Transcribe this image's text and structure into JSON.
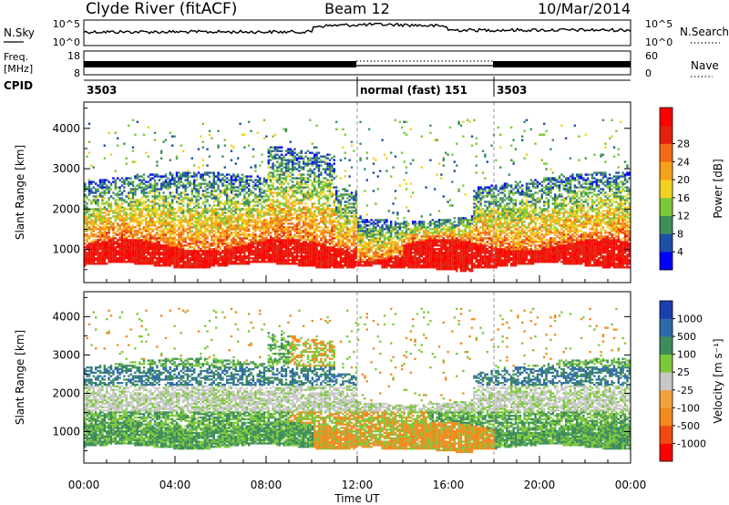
{
  "header": {
    "station": "Clyde River (fitACF)",
    "beam": "Beam 12",
    "date": "10/Mar/2014"
  },
  "strips": {
    "nsky_label": "N.Sky",
    "nsky_ticks": [
      "10^5",
      "10^0"
    ],
    "nsearch_label": "N.Search",
    "nsearch_ticks": [
      "10^5",
      "10^0"
    ],
    "freq_label_line1": "Freq.",
    "freq_label_line2": "[MHz]",
    "freq_ticks": [
      "18",
      "8"
    ],
    "nave_label": "Nave",
    "nave_ticks": [
      "60",
      "0"
    ],
    "cpid_label": "CPID",
    "cpid_segments": [
      {
        "text": "3503",
        "start_hour": 0
      },
      {
        "text": "normal (fast) 151",
        "start_hour": 12
      },
      {
        "text": "3503",
        "start_hour": 18
      }
    ]
  },
  "chart_data": [
    {
      "type": "heatmap",
      "title": "Power",
      "xlabel": "",
      "ylabel": "Slant Range [km]",
      "xlim_hours": [
        0,
        24
      ],
      "ylim": [
        180,
        4650
      ],
      "y_ticks": [
        1000,
        2000,
        3000,
        4000
      ],
      "colorbar": {
        "label": "Power [dB]",
        "ticks": [
          "4",
          "8",
          "12",
          "16",
          "20",
          "24",
          "28"
        ],
        "colors": [
          "#0000ff",
          "#1e4fa8",
          "#3f8f5a",
          "#7cc83a",
          "#f2d21e",
          "#f5a11a",
          "#f26a14",
          "#e2220e",
          "#ff0000"
        ]
      },
      "mode_change_hours": [
        12,
        18
      ]
    },
    {
      "type": "heatmap",
      "title": "Velocity",
      "xlabel": "Time UT",
      "ylabel": "Slant Range [km]",
      "xlim_hours": [
        0,
        24
      ],
      "ylim": [
        180,
        4650
      ],
      "y_ticks": [
        1000,
        2000,
        3000,
        4000
      ],
      "x_ticks": [
        "00:00",
        "04:00",
        "08:00",
        "12:00",
        "16:00",
        "20:00",
        "00:00"
      ],
      "colorbar": {
        "label": "Velocity [m s⁻¹]",
        "ticks": [
          "1000",
          "500",
          "100",
          "25",
          "-25",
          "-100",
          "-500",
          "-1000"
        ],
        "colors": [
          "#1a3fae",
          "#2e6aa8",
          "#3c8c5c",
          "#7cc83a",
          "#c8c8c8",
          "#f2a23a",
          "#f28a1e",
          "#f04a10",
          "#ff0000"
        ]
      },
      "mode_change_hours": [
        12,
        18
      ]
    }
  ]
}
